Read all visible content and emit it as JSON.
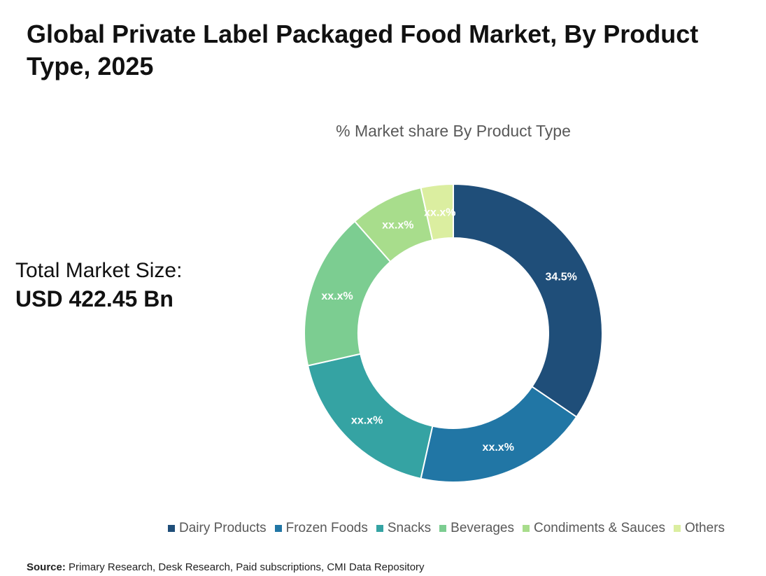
{
  "title": "Global Private Label Packaged Food Market, By Product Type, 2025",
  "market_size": {
    "label": "Total Market Size:",
    "value": "USD 422.45 Bn"
  },
  "source": {
    "label": "Source:",
    "text": "Primary Research, Desk Research, Paid subscriptions, CMI Data Repository"
  },
  "chart_data": {
    "type": "pie",
    "style": "donut",
    "title": "% Market share By Product Type",
    "legend_position": "bottom",
    "categories": [
      "Dairy Products",
      "Frozen Foods",
      "Snacks",
      "Beverages",
      "Condiments & Sauces",
      "Others"
    ],
    "values": [
      34.5,
      19,
      18,
      17,
      8,
      3.5
    ],
    "data_labels": [
      "34.5%",
      "xx.x%",
      "xx.x%",
      "xx.x%",
      "xx.x%",
      "xx.x%"
    ],
    "colors": [
      "#1f4e79",
      "#2176a5",
      "#35a3a3",
      "#7ccd91",
      "#a8dd8c",
      "#dbeea0"
    ]
  }
}
